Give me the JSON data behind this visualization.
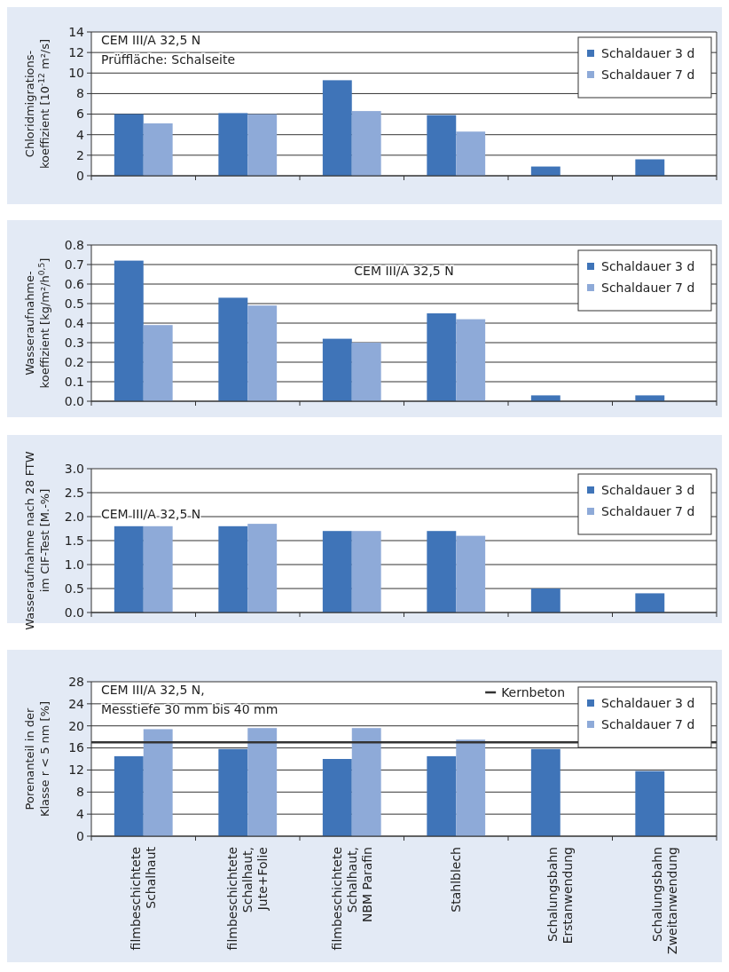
{
  "chart_data": [
    {
      "type": "bar",
      "ylabel": "Chloridmigrations-\nkoeffizient [10$^{-12}$ m²/s]",
      "categories": [
        null,
        null,
        null,
        null,
        null,
        null
      ],
      "series": [
        {
          "name": "Schaldauer 3 d",
          "color": "#3f74b8",
          "values": [
            6.0,
            6.1,
            9.3,
            5.9,
            0.9,
            1.6
          ]
        },
        {
          "name": "Schaldauer 7 d",
          "color": "#8eaad8",
          "values": [
            5.1,
            6.0,
            6.3,
            4.3,
            null,
            null
          ]
        }
      ],
      "ylim": [
        0,
        14
      ],
      "yticks": [
        0,
        2,
        4,
        6,
        8,
        10,
        12,
        14
      ],
      "grid": "y",
      "legend": "top right",
      "tick_labels": "y",
      "annotations": [
        "CEM III/A 32,5 N",
        "Prüffläche: Schalseite"
      ]
    },
    {
      "type": "bar",
      "ylabel": "Wasseraufnahme-\nkoeffizient [kg/m²/h$^{0,5}$]",
      "categories": [
        null,
        null,
        null,
        null,
        null,
        null
      ],
      "series": [
        {
          "name": "Schaldauer 3 d",
          "color": "#3f74b8",
          "values": [
            0.72,
            0.53,
            0.32,
            0.45,
            0.03,
            0.03
          ]
        },
        {
          "name": "Schaldauer 7 d",
          "color": "#8eaad8",
          "values": [
            0.39,
            0.49,
            0.3,
            0.42,
            null,
            null
          ]
        }
      ],
      "ylim": [
        0,
        0.8
      ],
      "yticks": [
        {
          "value": 0,
          "label": "0.0"
        },
        0.1,
        0.2,
        0.3,
        0.4,
        0.5,
        0.6,
        0.7,
        0.8
      ],
      "grid": "y",
      "legend": "top right",
      "tick_labels": "y",
      "annotations": [
        "CEM III/A 32,5 N"
      ]
    },
    {
      "type": "bar",
      "ylabel": "Wasseraufnahme nach 28 FTW\nim CIF-Test [M.-%]",
      "categories": [
        null,
        null,
        null,
        null,
        null,
        null
      ],
      "series": [
        {
          "name": "Schaldauer 3 d",
          "color": "#3f74b8",
          "values": [
            1.8,
            1.8,
            1.7,
            1.7,
            0.5,
            0.4
          ]
        },
        {
          "name": "Schaldauer 7 d",
          "color": "#8eaad8",
          "values": [
            1.8,
            1.85,
            1.7,
            1.6,
            null,
            null
          ]
        }
      ],
      "ylim": [
        0,
        3
      ],
      "yticks": [
        {
          "value": 0,
          "label": "0.0"
        },
        0.5,
        {
          "value": 1,
          "label": "1.0"
        },
        1.5,
        {
          "value": 2,
          "label": "2.0"
        },
        2.5,
        {
          "value": 3,
          "label": "3.0"
        }
      ],
      "grid": "y",
      "legend": "top right",
      "tick_labels": "y",
      "annotations": [
        "CEM III/A 32,5 N"
      ]
    },
    {
      "type": "bar",
      "ylabel": "Porenanteil in der\nKlasse r < 5 nm [%]",
      "categories": [
        "filmbeschichtete\nSchalhaut",
        "filmbeschichtete\nSchalhaut,\nJute+Folie",
        "filmbeschichtete\nSchalhaut,\nNBM Parafin",
        "Stahlblech",
        "Schalungsbahn\nErstanwendung",
        "Schalungsbahn\nZweitanwendung"
      ],
      "series": [
        {
          "name": "Schaldauer 3 d",
          "color": "#3f74b8",
          "values": [
            14.5,
            15.8,
            14.0,
            14.5,
            15.8,
            11.8
          ]
        },
        {
          "name": "Schaldauer 7 d",
          "color": "#8eaad8",
          "values": [
            19.4,
            19.6,
            19.6,
            17.5,
            null,
            null
          ]
        }
      ],
      "ylim": [
        0,
        28
      ],
      "yticks": [
        0,
        4,
        8,
        12,
        16,
        20,
        24,
        28
      ],
      "grid": "y",
      "legend": "top right",
      "ref_lines": [
        {
          "axis": "y",
          "value": 17,
          "label": "Kernbeton",
          "color": "#333333"
        }
      ],
      "annotations": [
        "CEM III/A 32,5 N,",
        "Messtiefe 30 mm bis 40 mm"
      ]
    }
  ]
}
